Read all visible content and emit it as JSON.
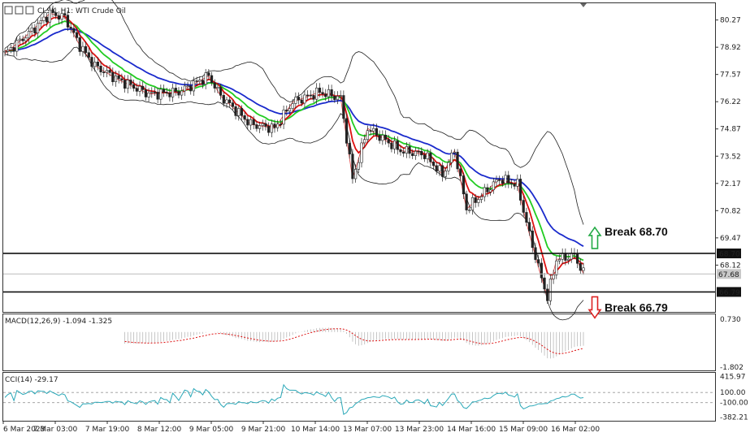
{
  "chart_data": {
    "type": "candlestick",
    "title": "CLSK, H1:  WTI Crude Oil",
    "colors": {
      "bull": "#1b8a3a",
      "bear": "#222222",
      "ma_fast": "#dd1111",
      "ma_mid": "#22cc22",
      "ma_slow": "#1a2acc",
      "bands": "#222222",
      "zigzag": "#dd1111",
      "arrow_up": "#22aa44",
      "arrow_down": "#dd2222",
      "signal": "#dd1111",
      "histogram": "#b8b8b8",
      "cci": "#2aa8b8"
    },
    "price_axis": {
      "range": [
        65.8,
        81.1
      ],
      "ticks": [
        "80.27",
        "78.92",
        "77.57",
        "76.22",
        "74.87",
        "73.52",
        "72.17",
        "70.82",
        "69.47",
        "68.12"
      ],
      "tick_values": [
        80.27,
        78.92,
        77.57,
        76.22,
        74.87,
        73.52,
        72.17,
        70.82,
        69.47,
        68.12
      ],
      "current_price": "67.68",
      "current_value": 67.68
    },
    "levels": [
      {
        "label": "68.70",
        "value": 68.7,
        "text": "Break 68.70",
        "direction": "up"
      },
      {
        "label": "66.79",
        "value": 66.79,
        "text": "Break 66.79",
        "direction": "down"
      }
    ],
    "time_axis": [
      "6 Mar 2023",
      "7 Mar 03:00",
      "7 Mar 19:00",
      "8 Mar 12:00",
      "9 Mar 05:00",
      "9 Mar 21:00",
      "10 Mar 14:00",
      "13 Mar 07:00",
      "13 Mar 23:00",
      "14 Mar 16:00",
      "15 Mar 09:00",
      "16 Mar 02:00"
    ],
    "keypoints": [
      [
        0,
        78.6
      ],
      [
        8,
        79.6
      ],
      [
        15,
        80.6
      ],
      [
        20,
        80.4
      ],
      [
        25,
        79.0
      ],
      [
        30,
        78.0
      ],
      [
        38,
        77.3
      ],
      [
        48,
        76.6
      ],
      [
        58,
        76.7
      ],
      [
        68,
        77.5
      ],
      [
        72,
        76.5
      ],
      [
        82,
        75.1
      ],
      [
        90,
        74.9
      ],
      [
        96,
        76.2
      ],
      [
        105,
        76.7
      ],
      [
        112,
        76.4
      ],
      [
        116,
        72.4
      ],
      [
        121,
        74.9
      ],
      [
        132,
        73.8
      ],
      [
        140,
        73.6
      ],
      [
        146,
        72.6
      ],
      [
        150,
        73.8
      ],
      [
        154,
        70.9
      ],
      [
        165,
        72.4
      ],
      [
        171,
        72.1
      ],
      [
        174,
        70.2
      ],
      [
        178,
        68.0
      ],
      [
        181,
        66.5
      ],
      [
        184,
        68.4
      ],
      [
        190,
        68.6
      ],
      [
        193,
        67.7
      ]
    ],
    "macd": {
      "label": "MACD(12,26,9) -1.094 -1.325",
      "ticks": [
        "0.730",
        "-1.802"
      ],
      "range": [
        -2.0,
        0.9
      ]
    },
    "cci": {
      "label": "CCI(14) -29.17",
      "ticks": [
        "415.97",
        "100.00",
        "-100.00",
        "-382.21"
      ],
      "range": [
        -440,
        470
      ]
    }
  }
}
